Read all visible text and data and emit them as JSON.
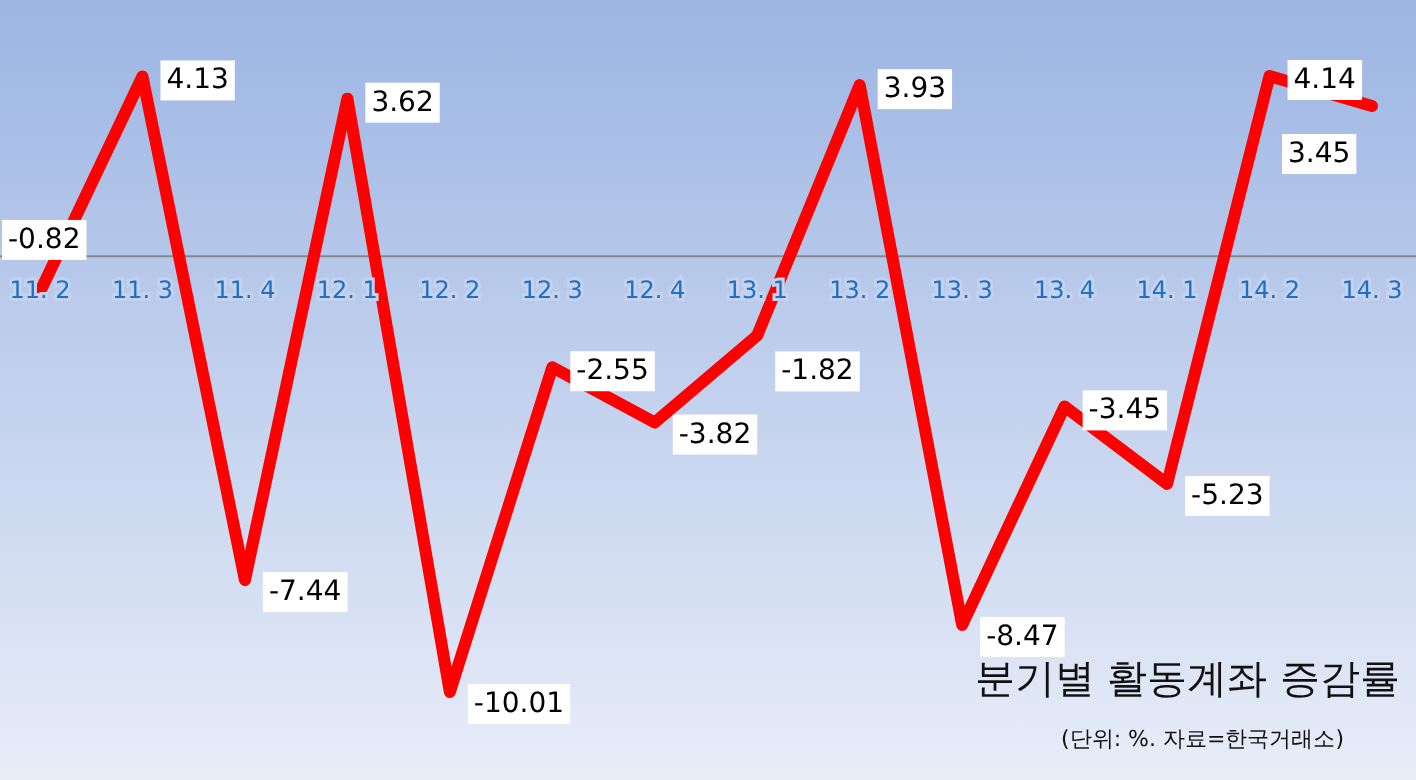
{
  "chart_data": {
    "type": "line",
    "title": "분기별 활동계좌 증감률",
    "annotations": [
      "(단위: %. 자료=한국거래소)"
    ],
    "categories": [
      "11. 2",
      "11. 3",
      "11. 4",
      "12. 1",
      "12. 2",
      "12. 3",
      "12. 4",
      "13. 1",
      "13. 2",
      "13. 3",
      "13. 4",
      "14. 1",
      "14. 2",
      "14. 3"
    ],
    "series": [
      {
        "color": "#ff0000",
        "values": [
          -0.82,
          4.13,
          -7.44,
          3.62,
          -10.01,
          -2.55,
          -3.82,
          -1.82,
          3.93,
          -8.47,
          -3.45,
          -5.23,
          4.14,
          3.45
        ]
      }
    ],
    "data_labels": true,
    "marker": "none",
    "line_style": "solid",
    "grid": false
  }
}
